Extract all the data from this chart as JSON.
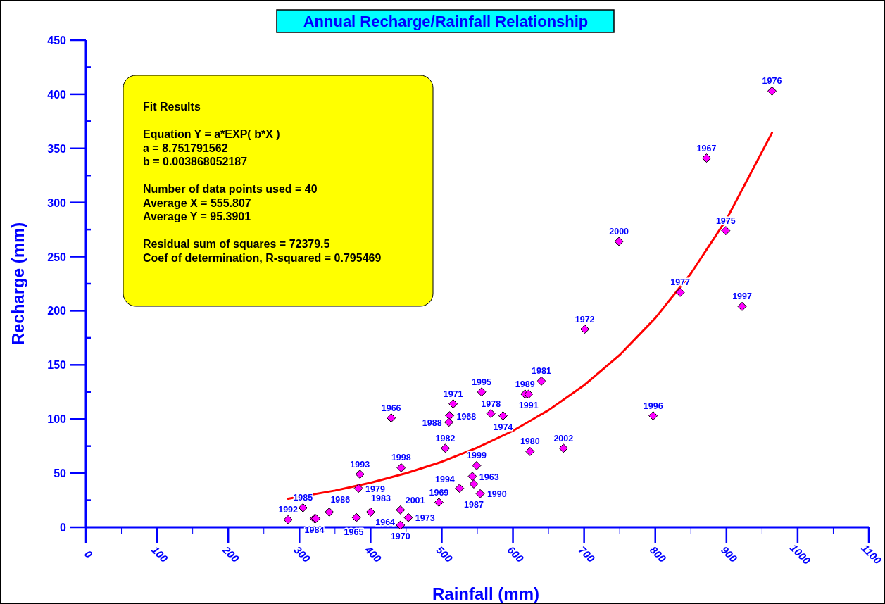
{
  "chart_data": {
    "type": "scatter",
    "title": "Annual Recharge/Rainfall Relationship",
    "xlabel": "Rainfall (mm)",
    "ylabel": "Recharge (mm)",
    "xlim": [
      0,
      1100
    ],
    "ylim": [
      0,
      450
    ],
    "xticks": [
      0,
      {
        "value": 50,
        "label": null
      },
      100,
      {
        "value": 150,
        "label": null
      },
      200,
      {
        "value": 250,
        "label": null
      },
      300,
      {
        "value": 350,
        "label": null
      },
      400,
      {
        "value": 450,
        "label": null
      },
      500,
      {
        "value": 550,
        "label": null
      },
      600,
      {
        "value": 650,
        "label": null
      },
      700,
      {
        "value": 750,
        "label": null
      },
      800,
      {
        "value": 850,
        "label": null
      },
      900,
      {
        "value": 950,
        "label": null
      },
      1000,
      {
        "value": 1050,
        "label": null
      },
      1100
    ],
    "yticks": [
      0,
      {
        "value": 25,
        "label": null
      },
      50,
      {
        "value": 75,
        "label": null
      },
      100,
      {
        "value": 125,
        "label": null
      },
      150,
      {
        "value": 175,
        "label": null
      },
      200,
      {
        "value": 225,
        "label": null
      },
      250,
      {
        "value": 275,
        "label": null
      },
      300,
      {
        "value": 325,
        "label": null
      },
      350,
      {
        "value": 375,
        "label": null
      },
      400,
      {
        "value": 425,
        "label": null
      },
      450
    ],
    "grid": false,
    "marker": "diamond",
    "series": [
      {
        "color": "#ff00ff",
        "x": [
          284,
          305,
          321,
          323,
          342,
          380,
          400,
          385,
          383,
          443,
          429,
          442,
          453,
          442,
          496,
          525,
          549,
          543,
          545,
          554,
          505,
          511,
          510,
          516,
          556,
          569,
          586,
          617,
          622,
          640,
          624,
          671,
          701,
          749,
          835,
          797,
          872,
          899,
          922,
          964
        ],
        "values": [
          7,
          18,
          8,
          8,
          14,
          9,
          14,
          49,
          36,
          55,
          101,
          16,
          9,
          2,
          23,
          36,
          57,
          47,
          40,
          31,
          73,
          103,
          97,
          114,
          125,
          105,
          103,
          123,
          123,
          135,
          70,
          73,
          183,
          264,
          217,
          103,
          341,
          274,
          204,
          403
        ]
      },
      {
        "type": "line",
        "color": "#ff0000",
        "marker": "none",
        "line_style": "solid",
        "x": [
          284,
          350,
          400,
          450,
          500,
          550,
          600,
          650,
          700,
          750,
          800,
          850,
          900,
          964
        ],
        "values": [
          26.3,
          33.9,
          41.1,
          49.9,
          60.5,
          73.5,
          89.1,
          108.2,
          131.2,
          159.2,
          193.2,
          234.4,
          284.4,
          364.4
        ]
      }
    ],
    "annotations": [
      {
        "text": "1992",
        "x": 284,
        "y": 7
      },
      {
        "text": "1985",
        "x": 305,
        "y": 18
      },
      {
        "text": "1984",
        "x": 321,
        "y": 8
      },
      {
        "text": "1986",
        "x": 323,
        "y": 8
      },
      {
        "text": "1965",
        "x": 342,
        "y": 14
      },
      {
        "text": "1983",
        "x": 380,
        "y": 9
      },
      {
        "text": "1964",
        "x": 400,
        "y": 14
      },
      {
        "text": "1993",
        "x": 385,
        "y": 49
      },
      {
        "text": "1979",
        "x": 383,
        "y": 36
      },
      {
        "text": "1998",
        "x": 443,
        "y": 55
      },
      {
        "text": "1966",
        "x": 429,
        "y": 101
      },
      {
        "text": "2001",
        "x": 442,
        "y": 16
      },
      {
        "text": "1973",
        "x": 453,
        "y": 9
      },
      {
        "text": "1970",
        "x": 442,
        "y": 2
      },
      {
        "text": "1969",
        "x": 496,
        "y": 23
      },
      {
        "text": "1994",
        "x": 525,
        "y": 36
      },
      {
        "text": "1999",
        "x": 549,
        "y": 57
      },
      {
        "text": "1963",
        "x": 543,
        "y": 47
      },
      {
        "text": "1987",
        "x": 545,
        "y": 40
      },
      {
        "text": "1990",
        "x": 554,
        "y": 31
      },
      {
        "text": "1982",
        "x": 505,
        "y": 73
      },
      {
        "text": "1968",
        "x": 511,
        "y": 103
      },
      {
        "text": "1988",
        "x": 510,
        "y": 97
      },
      {
        "text": "1971",
        "x": 516,
        "y": 114
      },
      {
        "text": "1995",
        "x": 556,
        "y": 125
      },
      {
        "text": "1978",
        "x": 569,
        "y": 105
      },
      {
        "text": "1974",
        "x": 586,
        "y": 103
      },
      {
        "text": "1989",
        "x": 617,
        "y": 123
      },
      {
        "text": "1991",
        "x": 622,
        "y": 123
      },
      {
        "text": "1981",
        "x": 640,
        "y": 135
      },
      {
        "text": "1980",
        "x": 624,
        "y": 70
      },
      {
        "text": "2002",
        "x": 671,
        "y": 73
      },
      {
        "text": "1972",
        "x": 701,
        "y": 183
      },
      {
        "text": "2000",
        "x": 749,
        "y": 264
      },
      {
        "text": "1977",
        "x": 835,
        "y": 217
      },
      {
        "text": "1996",
        "x": 797,
        "y": 103
      },
      {
        "text": "1967",
        "x": 872,
        "y": 341
      },
      {
        "text": "1975",
        "x": 899,
        "y": 274
      },
      {
        "text": "1997",
        "x": 922,
        "y": 204
      },
      {
        "text": "1976",
        "x": 964,
        "y": 403
      },
      "Fit Results",
      "Equation Y = a*EXP( b*X )\na = 8.751791562\nb = 0.003868052187",
      "Number of data points used = 40\nAverage X = 555.807\nAverage Y = 95.3901",
      "Residual sum of squares = 72379.5\nCoef of determination, R-squared = 0.795469"
    ]
  }
}
